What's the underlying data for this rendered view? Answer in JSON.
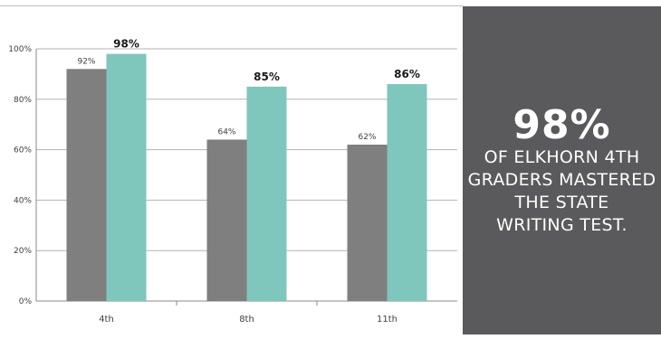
{
  "chart_data": {
    "type": "bar",
    "categories": [
      "4th",
      "8th",
      "11th"
    ],
    "series": [
      {
        "values": [
          92,
          64,
          62
        ],
        "labels": [
          "92%",
          "64%",
          "62%"
        ],
        "color": "#7f7f7f"
      },
      {
        "values": [
          98,
          85,
          86
        ],
        "labels": [
          "98%",
          "85%",
          "86%"
        ],
        "color": "#7fc6bc"
      }
    ],
    "ylim": [
      0,
      100
    ],
    "yticks": [
      0,
      20,
      40,
      60,
      80,
      100
    ],
    "ytick_labels": [
      "0%",
      "20%",
      "40%",
      "60%",
      "80%",
      "100%"
    ],
    "grid": true,
    "gridline_color": "#b3b3b3"
  },
  "callout": {
    "headline": "98%",
    "lines": [
      "OF ELKHORN 4TH",
      "GRADERS MASTERED",
      "THE STATE",
      "WRITING TEST."
    ]
  }
}
